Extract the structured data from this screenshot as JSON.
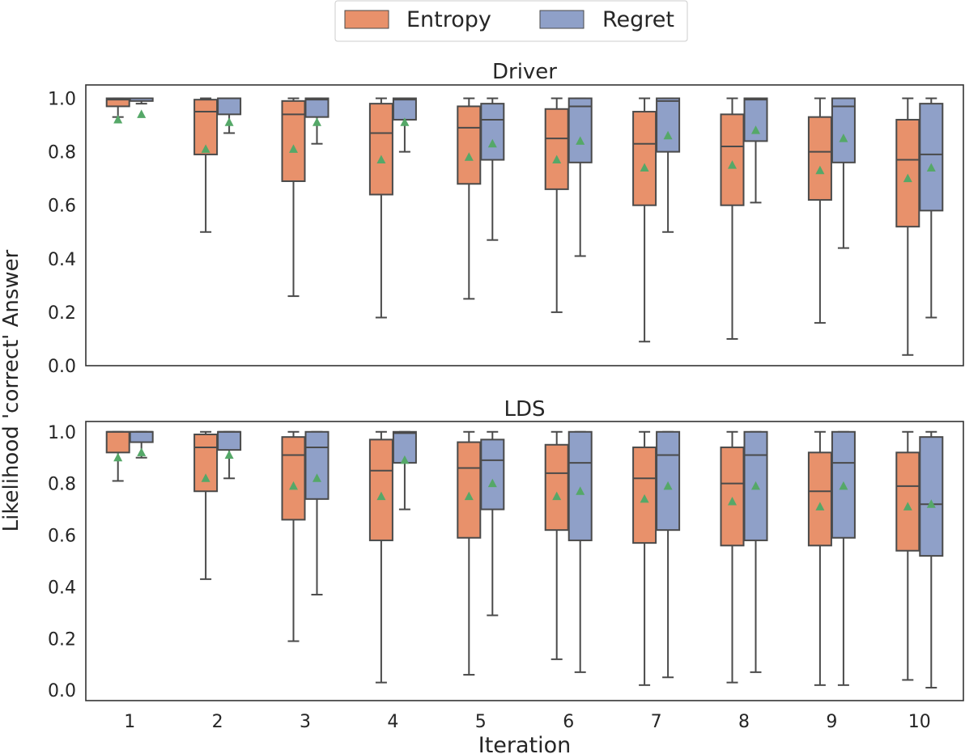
{
  "colors": {
    "entropy": "#E8916B",
    "regret": "#8FA0C8",
    "line": "#4a4a4a",
    "mean_marker": "#55A868",
    "frame": "#333333"
  },
  "legend": {
    "entries": [
      {
        "label": "Entropy",
        "color": "#E8916B"
      },
      {
        "label": "Regret",
        "color": "#8FA0C8"
      }
    ],
    "placement": "top-center"
  },
  "axes": {
    "ylabel": "Likelihood 'correct' Answer",
    "xlabel": "Iteration"
  },
  "chart_data": [
    {
      "type": "box",
      "title": "Driver",
      "categories": [
        "1",
        "2",
        "3",
        "4",
        "5",
        "6",
        "7",
        "8",
        "9",
        "10"
      ],
      "ylim": [
        0,
        1.05
      ],
      "yticks": [
        "0.0",
        "0.2",
        "0.4",
        "0.6",
        "0.8",
        "1.0"
      ],
      "grid": false,
      "series": [
        {
          "name": "Entropy",
          "boxes": [
            {
              "whislo": 0.93,
              "q1": 0.97,
              "med": 0.995,
              "q3": 1.0,
              "whishi": 1.0,
              "mean": 0.92
            },
            {
              "whislo": 0.5,
              "q1": 0.79,
              "med": 0.95,
              "q3": 0.995,
              "whishi": 1.0,
              "mean": 0.81
            },
            {
              "whislo": 0.26,
              "q1": 0.69,
              "med": 0.94,
              "q3": 0.99,
              "whishi": 1.0,
              "mean": 0.81
            },
            {
              "whislo": 0.18,
              "q1": 0.64,
              "med": 0.87,
              "q3": 0.98,
              "whishi": 1.0,
              "mean": 0.77
            },
            {
              "whislo": 0.25,
              "q1": 0.68,
              "med": 0.89,
              "q3": 0.97,
              "whishi": 1.0,
              "mean": 0.78
            },
            {
              "whislo": 0.2,
              "q1": 0.66,
              "med": 0.85,
              "q3": 0.96,
              "whishi": 1.0,
              "mean": 0.77
            },
            {
              "whislo": 0.09,
              "q1": 0.6,
              "med": 0.83,
              "q3": 0.95,
              "whishi": 1.0,
              "mean": 0.74
            },
            {
              "whislo": 0.1,
              "q1": 0.6,
              "med": 0.82,
              "q3": 0.94,
              "whishi": 1.0,
              "mean": 0.75
            },
            {
              "whislo": 0.16,
              "q1": 0.62,
              "med": 0.8,
              "q3": 0.93,
              "whishi": 1.0,
              "mean": 0.73
            },
            {
              "whislo": 0.04,
              "q1": 0.52,
              "med": 0.77,
              "q3": 0.92,
              "whishi": 1.0,
              "mean": 0.7
            }
          ]
        },
        {
          "name": "Regret",
          "boxes": [
            {
              "whislo": 0.98,
              "q1": 0.99,
              "med": 1.0,
              "q3": 1.0,
              "whishi": 1.0,
              "mean": 0.94
            },
            {
              "whislo": 0.87,
              "q1": 0.94,
              "med": 1.0,
              "q3": 1.0,
              "whishi": 1.0,
              "mean": 0.91
            },
            {
              "whislo": 0.83,
              "q1": 0.93,
              "med": 0.995,
              "q3": 1.0,
              "whishi": 1.0,
              "mean": 0.91
            },
            {
              "whislo": 0.8,
              "q1": 0.92,
              "med": 0.995,
              "q3": 1.0,
              "whishi": 1.0,
              "mean": 0.91
            },
            {
              "whislo": 0.47,
              "q1": 0.77,
              "med": 0.92,
              "q3": 0.98,
              "whishi": 1.0,
              "mean": 0.83
            },
            {
              "whislo": 0.41,
              "q1": 0.76,
              "med": 0.97,
              "q3": 1.0,
              "whishi": 1.0,
              "mean": 0.84
            },
            {
              "whislo": 0.5,
              "q1": 0.8,
              "med": 0.99,
              "q3": 1.0,
              "whishi": 1.0,
              "mean": 0.86
            },
            {
              "whislo": 0.61,
              "q1": 0.84,
              "med": 0.995,
              "q3": 1.0,
              "whishi": 1.0,
              "mean": 0.88
            },
            {
              "whislo": 0.44,
              "q1": 0.76,
              "med": 0.97,
              "q3": 1.0,
              "whishi": 1.0,
              "mean": 0.85
            },
            {
              "whislo": 0.18,
              "q1": 0.58,
              "med": 0.79,
              "q3": 0.98,
              "whishi": 1.0,
              "mean": 0.74
            }
          ]
        }
      ]
    },
    {
      "type": "box",
      "title": "LDS",
      "categories": [
        "1",
        "2",
        "3",
        "4",
        "5",
        "6",
        "7",
        "8",
        "9",
        "10"
      ],
      "ylim": [
        -0.04,
        1.04
      ],
      "yticks": [
        "0.0",
        "0.2",
        "0.4",
        "0.6",
        "0.8",
        "1.0"
      ],
      "grid": false,
      "series": [
        {
          "name": "Entropy",
          "boxes": [
            {
              "whislo": 0.81,
              "q1": 0.92,
              "med": 1.0,
              "q3": 1.0,
              "whishi": 1.0,
              "mean": 0.9
            },
            {
              "whislo": 0.43,
              "q1": 0.77,
              "med": 0.94,
              "q3": 0.99,
              "whishi": 1.0,
              "mean": 0.82
            },
            {
              "whislo": 0.19,
              "q1": 0.66,
              "med": 0.91,
              "q3": 0.98,
              "whishi": 1.0,
              "mean": 0.79
            },
            {
              "whislo": 0.03,
              "q1": 0.58,
              "med": 0.85,
              "q3": 0.97,
              "whishi": 1.0,
              "mean": 0.75
            },
            {
              "whislo": 0.06,
              "q1": 0.59,
              "med": 0.86,
              "q3": 0.96,
              "whishi": 1.0,
              "mean": 0.75
            },
            {
              "whislo": 0.12,
              "q1": 0.62,
              "med": 0.84,
              "q3": 0.95,
              "whishi": 1.0,
              "mean": 0.75
            },
            {
              "whislo": 0.02,
              "q1": 0.57,
              "med": 0.82,
              "q3": 0.94,
              "whishi": 1.0,
              "mean": 0.74
            },
            {
              "whislo": 0.03,
              "q1": 0.56,
              "med": 0.8,
              "q3": 0.94,
              "whishi": 1.0,
              "mean": 0.73
            },
            {
              "whislo": 0.02,
              "q1": 0.56,
              "med": 0.77,
              "q3": 0.92,
              "whishi": 1.0,
              "mean": 0.71
            },
            {
              "whislo": 0.04,
              "q1": 0.54,
              "med": 0.79,
              "q3": 0.92,
              "whishi": 1.0,
              "mean": 0.71
            }
          ]
        },
        {
          "name": "Regret",
          "boxes": [
            {
              "whislo": 0.9,
              "q1": 0.96,
              "med": 1.0,
              "q3": 1.0,
              "whishi": 1.0,
              "mean": 0.92
            },
            {
              "whislo": 0.82,
              "q1": 0.93,
              "med": 1.0,
              "q3": 1.0,
              "whishi": 1.0,
              "mean": 0.91
            },
            {
              "whislo": 0.37,
              "q1": 0.74,
              "med": 0.94,
              "q3": 1.0,
              "whishi": 1.0,
              "mean": 0.82
            },
            {
              "whislo": 0.7,
              "q1": 0.88,
              "med": 0.995,
              "q3": 1.0,
              "whishi": 1.0,
              "mean": 0.89
            },
            {
              "whislo": 0.29,
              "q1": 0.7,
              "med": 0.89,
              "q3": 0.97,
              "whishi": 1.0,
              "mean": 0.8
            },
            {
              "whislo": 0.07,
              "q1": 0.58,
              "med": 0.88,
              "q3": 1.0,
              "whishi": 1.0,
              "mean": 0.77
            },
            {
              "whislo": 0.05,
              "q1": 0.62,
              "med": 0.91,
              "q3": 1.0,
              "whishi": 1.0,
              "mean": 0.79
            },
            {
              "whislo": 0.07,
              "q1": 0.58,
              "med": 0.91,
              "q3": 1.0,
              "whishi": 1.0,
              "mean": 0.79
            },
            {
              "whislo": 0.02,
              "q1": 0.59,
              "med": 0.88,
              "q3": 1.0,
              "whishi": 1.0,
              "mean": 0.79
            },
            {
              "whislo": 0.01,
              "q1": 0.52,
              "med": 0.72,
              "q3": 0.98,
              "whishi": 1.0,
              "mean": 0.72
            }
          ]
        }
      ]
    }
  ]
}
